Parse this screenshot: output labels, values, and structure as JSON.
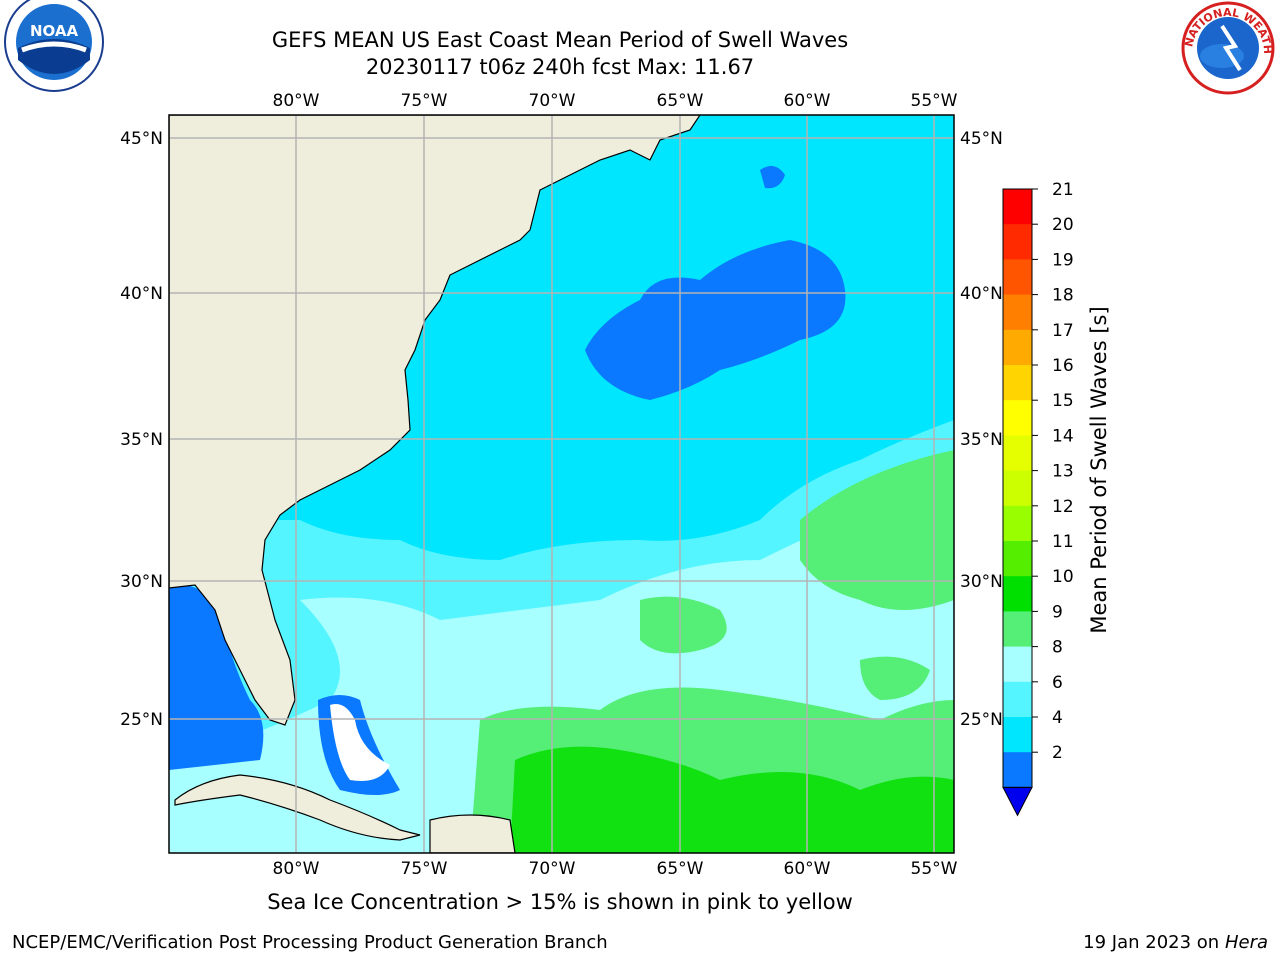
{
  "title": {
    "line1": "GEFS MEAN US East Coast Mean Period of Swell Waves",
    "line2": "20230117 t06z 240h fcst   Max: 11.67"
  },
  "map": {
    "lon_labels": [
      "80°W",
      "75°W",
      "70°W",
      "65°W",
      "60°W",
      "55°W"
    ],
    "lat_labels": [
      "45°N",
      "40°N",
      "35°N",
      "30°N",
      "25°N"
    ],
    "colors": {
      "land": "#efeedd",
      "band_2_4": "#0a78ff",
      "band_4_6": "#00e6ff",
      "band_6_8": "#55f5ff",
      "band_8_9": "#a8ffff",
      "band_9_10": "#55ee77",
      "band_10_11": "#11e011",
      "grid": "#b4b4b4"
    }
  },
  "colorbar": {
    "label": "Mean Period of Swell Waves [s]",
    "ticks": [
      "21",
      "20",
      "19",
      "18",
      "17",
      "16",
      "15",
      "14",
      "13",
      "12",
      "11",
      "10",
      "9",
      "8",
      "6",
      "4",
      "2"
    ],
    "colors": [
      "#ff0000",
      "#ff2a00",
      "#ff5500",
      "#ff8000",
      "#ffaa00",
      "#ffd400",
      "#ffff00",
      "#e6ff00",
      "#ccff00",
      "#99ff00",
      "#55ee00",
      "#00e000",
      "#55ee77",
      "#a8ffff",
      "#55f5ff",
      "#00e6ff",
      "#0a78ff"
    ],
    "under_color": "#0000ee"
  },
  "logos": {
    "noaa_text": "NOAA",
    "nws_text": "NATIONAL WEATHER SERVICE"
  },
  "footer": {
    "caption": "Sea Ice Concentration > 15% is shown in pink to yellow",
    "left": "NCEP/EMC/Verification Post Processing Product Generation Branch",
    "right_date": "19 Jan 2023 on",
    "right_host": "Hera"
  }
}
